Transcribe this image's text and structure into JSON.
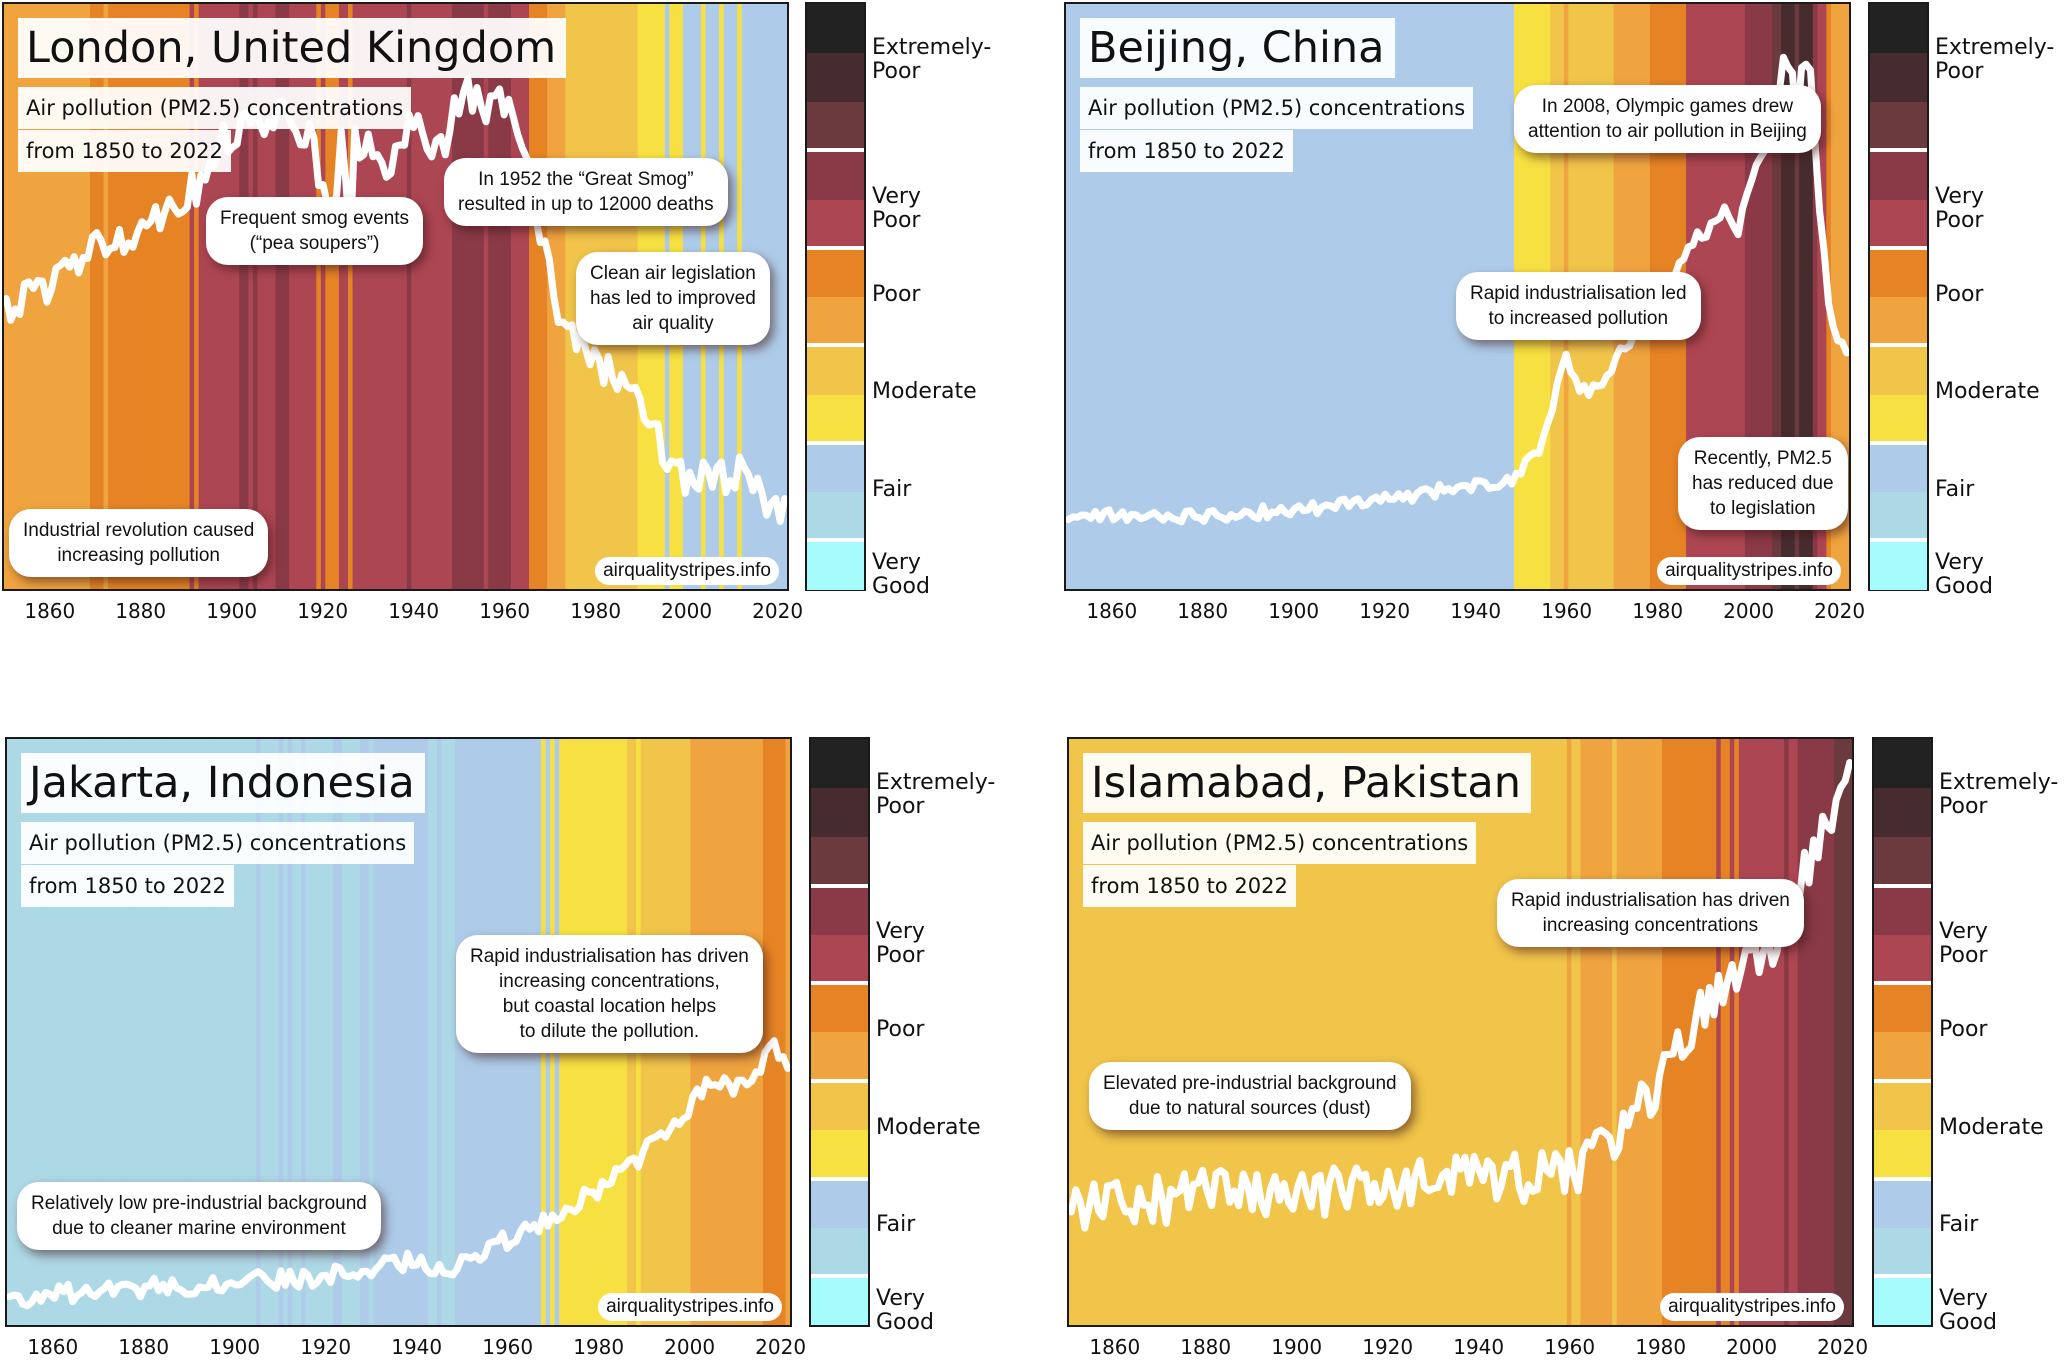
{
  "figure": {
    "subtitle": "Air pollution (PM2.5) concentrations",
    "period": "from 1850 to 2022",
    "credit": "airqualitystripes.info"
  },
  "legend": {
    "bin_colors_low_to_high": [
      "#a6fcfc",
      "#add8e6",
      "#aecce9",
      "#f7e142",
      "#f1c44a",
      "#f0a43f",
      "#e68425",
      "#ad4653",
      "#8a3a47",
      "#6b3a3e",
      "#472c2f",
      "#222222"
    ],
    "categories": [
      {
        "label": "Very Good",
        "bins": [
          0
        ]
      },
      {
        "label": "Fair",
        "bins": [
          1,
          2
        ]
      },
      {
        "label": "Moderate",
        "bins": [
          3,
          4
        ]
      },
      {
        "label": "Poor",
        "bins": [
          5,
          6
        ]
      },
      {
        "label": "Very Poor",
        "bins": [
          7,
          8
        ]
      },
      {
        "label": "Extremely-\nPoor",
        "bins": [
          9,
          10,
          11
        ]
      }
    ]
  },
  "chart_data": [
    {
      "type": "line",
      "title": "London, United Kingdom",
      "subtitle": "Air pollution (PM2.5) concentrations",
      "period": "from 1850 to 2022",
      "x_range": [
        1850,
        2022
      ],
      "x_ticks": [
        1860,
        1880,
        1900,
        1920,
        1940,
        1960,
        1980,
        2000,
        2020
      ],
      "value_units": "colour-scale level (0 = Very Good, 12 = top of Extremely-Poor)",
      "y_range_levels": [
        1.2,
        9.6
      ],
      "anchors": [
        [
          1850,
          5.2
        ],
        [
          1860,
          5.6
        ],
        [
          1870,
          6.1
        ],
        [
          1880,
          6.4
        ],
        [
          1890,
          6.9
        ],
        [
          1894,
          7.0
        ],
        [
          1897,
          7.6
        ],
        [
          1905,
          7.9
        ],
        [
          1912,
          8.0
        ],
        [
          1917,
          7.7
        ],
        [
          1922,
          6.4
        ],
        [
          1924,
          7.7
        ],
        [
          1926,
          6.0
        ],
        [
          1927,
          7.6
        ],
        [
          1932,
          7.5
        ],
        [
          1935,
          7.2
        ],
        [
          1940,
          7.9
        ],
        [
          1946,
          7.5
        ],
        [
          1950,
          8.2
        ],
        [
          1952,
          8.4
        ],
        [
          1956,
          8.0
        ],
        [
          1960,
          8.2
        ],
        [
          1965,
          7.6
        ],
        [
          1967,
          6.7
        ],
        [
          1972,
          5.2
        ],
        [
          1975,
          4.8
        ],
        [
          1980,
          4.5
        ],
        [
          1985,
          4.2
        ],
        [
          1990,
          4.0
        ],
        [
          1995,
          3.2
        ],
        [
          2000,
          2.8
        ],
        [
          2005,
          2.8
        ],
        [
          2010,
          2.8
        ],
        [
          2013,
          3.0
        ],
        [
          2016,
          2.6
        ],
        [
          2022,
          2.3
        ]
      ],
      "noise_amplitude_levels": 0.25,
      "annotations": [
        "Frequent smog events\n(“pea soupers”)",
        "In 1952 the “Great Smog”\nresulted in up to 12000 deaths",
        "Clean air legislation\nhas led to improved\nair quality",
        "Industrial revolution caused\nincreasing pollution"
      ]
    },
    {
      "type": "line",
      "title": "Beijing, China",
      "subtitle": "Air pollution (PM2.5) concentrations",
      "period": "from 1850 to 2022",
      "x_range": [
        1850,
        2022
      ],
      "x_ticks": [
        1860,
        1880,
        1900,
        1920,
        1940,
        1960,
        1980,
        2000,
        2020
      ],
      "value_units": "colour-scale level (0 = Very Good, 12 = top of Extremely-Poor)",
      "y_range_levels": [
        1.0,
        11.4
      ],
      "anchors": [
        [
          1850,
          2.3
        ],
        [
          1880,
          2.3
        ],
        [
          1900,
          2.4
        ],
        [
          1920,
          2.6
        ],
        [
          1935,
          2.8
        ],
        [
          1947,
          2.9
        ],
        [
          1950,
          3.1
        ],
        [
          1954,
          3.4
        ],
        [
          1958,
          4.6
        ],
        [
          1960,
          5.2
        ],
        [
          1963,
          4.5
        ],
        [
          1968,
          4.6
        ],
        [
          1972,
          5.2
        ],
        [
          1978,
          5.9
        ],
        [
          1984,
          6.6
        ],
        [
          1988,
          7.2
        ],
        [
          1992,
          7.4
        ],
        [
          1995,
          7.8
        ],
        [
          1998,
          7.4
        ],
        [
          2001,
          8.3
        ],
        [
          2004,
          8.8
        ],
        [
          2006,
          9.3
        ],
        [
          2008,
          10.4
        ],
        [
          2010,
          10.2
        ],
        [
          2011,
          9.1
        ],
        [
          2012,
          10.3
        ],
        [
          2014,
          10.2
        ],
        [
          2016,
          7.8
        ],
        [
          2018,
          6.0
        ],
        [
          2020,
          5.3
        ],
        [
          2022,
          5.3
        ]
      ],
      "noise_amplitude_levels": 0.12,
      "annotations": [
        "In 2008, Olympic games drew\nattention to air pollution in Beijing",
        "Rapid industrialisation led\nto increased pollution",
        "Recently, PM2.5\nhas reduced due\nto legislation"
      ]
    },
    {
      "type": "line",
      "title": "Jakarta, Indonesia",
      "subtitle": "Air pollution (PM2.5) concentrations",
      "period": "from 1850 to 2022",
      "x_range": [
        1850,
        2022
      ],
      "x_ticks": [
        1860,
        1880,
        1900,
        1920,
        1940,
        1960,
        1980,
        2000,
        2020
      ],
      "value_units": "colour-scale level (0 = Very Good, 12 = top of Extremely-Poor)",
      "y_range_levels": [
        1.0,
        12.0
      ],
      "anchors": [
        [
          1850,
          1.5
        ],
        [
          1880,
          1.7
        ],
        [
          1900,
          1.8
        ],
        [
          1920,
          1.9
        ],
        [
          1930,
          2.1
        ],
        [
          1940,
          2.2
        ],
        [
          1947,
          2.05
        ],
        [
          1955,
          2.4
        ],
        [
          1965,
          2.8
        ],
        [
          1975,
          3.3
        ],
        [
          1980,
          3.5
        ],
        [
          1985,
          3.9
        ],
        [
          1990,
          4.2
        ],
        [
          1995,
          4.7
        ],
        [
          2000,
          5.1
        ],
        [
          2005,
          5.6
        ],
        [
          2010,
          5.4
        ],
        [
          2015,
          5.8
        ],
        [
          2019,
          6.2
        ],
        [
          2022,
          5.7
        ]
      ],
      "noise_amplitude_levels": 0.18,
      "annotations": [
        "Rapid industrialisation has driven\nincreasing concentrations,\nbut coastal location helps\nto dilute the pollution.",
        "Relatively low pre-industrial background\ndue to cleaner marine environment"
      ]
    },
    {
      "type": "line",
      "title": "Islamabad, Pakistan",
      "subtitle": "Air pollution (PM2.5) concentrations",
      "period": "from 1850 to 2022",
      "x_range": [
        1850,
        2022
      ],
      "x_ticks": [
        1860,
        1880,
        1900,
        1920,
        1940,
        1960,
        1980,
        2000,
        2020
      ],
      "value_units": "colour-scale level (0 = Very Good, 12 = top of Extremely-Poor)",
      "y_range_levels": [
        3.0,
        9.8
      ],
      "anchors": [
        [
          1850,
          4.4
        ],
        [
          1880,
          4.5
        ],
        [
          1900,
          4.5
        ],
        [
          1920,
          4.6
        ],
        [
          1940,
          4.7
        ],
        [
          1952,
          4.7
        ],
        [
          1960,
          4.8
        ],
        [
          1968,
          5.0
        ],
        [
          1973,
          5.4
        ],
        [
          1980,
          5.8
        ],
        [
          1988,
          6.5
        ],
        [
          1995,
          7.1
        ],
        [
          2000,
          7.3
        ],
        [
          2005,
          7.3
        ],
        [
          2010,
          8.1
        ],
        [
          2015,
          8.6
        ],
        [
          2019,
          8.9
        ],
        [
          2022,
          9.4
        ]
      ],
      "noise_amplitude_levels": 0.3,
      "annotations": [
        "Rapid industrialisation has driven\nincreasing concentrations",
        "Elevated pre-industrial background\ndue to natural sources (dust)"
      ]
    }
  ]
}
